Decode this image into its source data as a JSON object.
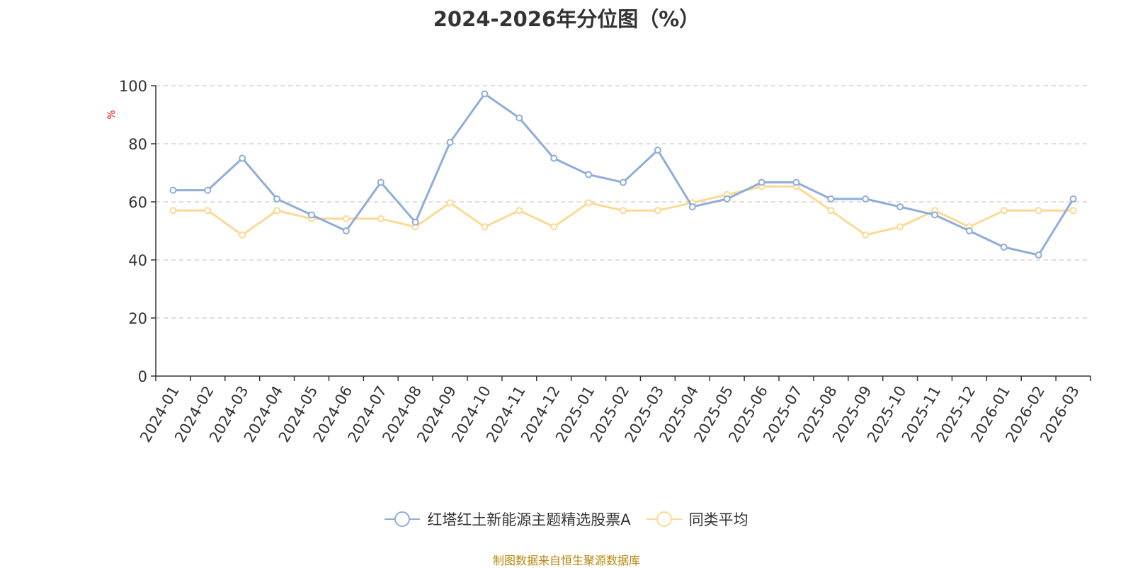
{
  "chart_data": {
    "type": "line",
    "title": "2024-2026年分位图（%）",
    "ylabel": "%",
    "ylim": [
      0,
      100
    ],
    "yticks": [
      0,
      20,
      40,
      60,
      80,
      100
    ],
    "grid": "horizontal dashed",
    "legend_position": "bottom",
    "categories": [
      "2024-01",
      "2024-02",
      "2024-03",
      "2024-04",
      "2024-05",
      "2024-06",
      "2024-07",
      "2024-08",
      "2024-09",
      "2024-10",
      "2024-11",
      "2024-12",
      "2025-01",
      "2025-02",
      "2025-03",
      "2025-04",
      "2025-05",
      "2025-06",
      "2025-07",
      "2025-08",
      "2025-09",
      "2025-10",
      "2025-11",
      "2025-12",
      "2026-01",
      "2026-02",
      "2026-03"
    ],
    "series": [
      {
        "name": "红塔红土新能源主题精选股票A",
        "color": "#8fadd8",
        "values": [
          64,
          64,
          75,
          61,
          55.5,
          50,
          66.7,
          53,
          80.5,
          97.2,
          88.9,
          75,
          69.4,
          66.7,
          77.8,
          58.3,
          61,
          66.7,
          66.7,
          61,
          61,
          58.3,
          55.5,
          50,
          44.4,
          41.7,
          61
        ]
      },
      {
        "name": "同类平均",
        "color": "#fcd993",
        "values": [
          57,
          57,
          48.6,
          57,
          54.2,
          54.2,
          54.2,
          51.4,
          59.7,
          51.4,
          57,
          51.4,
          59.7,
          57,
          57,
          59.7,
          62.5,
          65.3,
          65.3,
          57,
          48.6,
          51.4,
          57,
          51.4,
          57,
          57,
          57
        ]
      }
    ]
  },
  "footer": {
    "source": "制图数据来自恒生聚源数据库"
  },
  "colors": {
    "axis": "#333333",
    "grid": "#cccccc",
    "ylabel": "#ff0000",
    "source": "#b8860b"
  }
}
